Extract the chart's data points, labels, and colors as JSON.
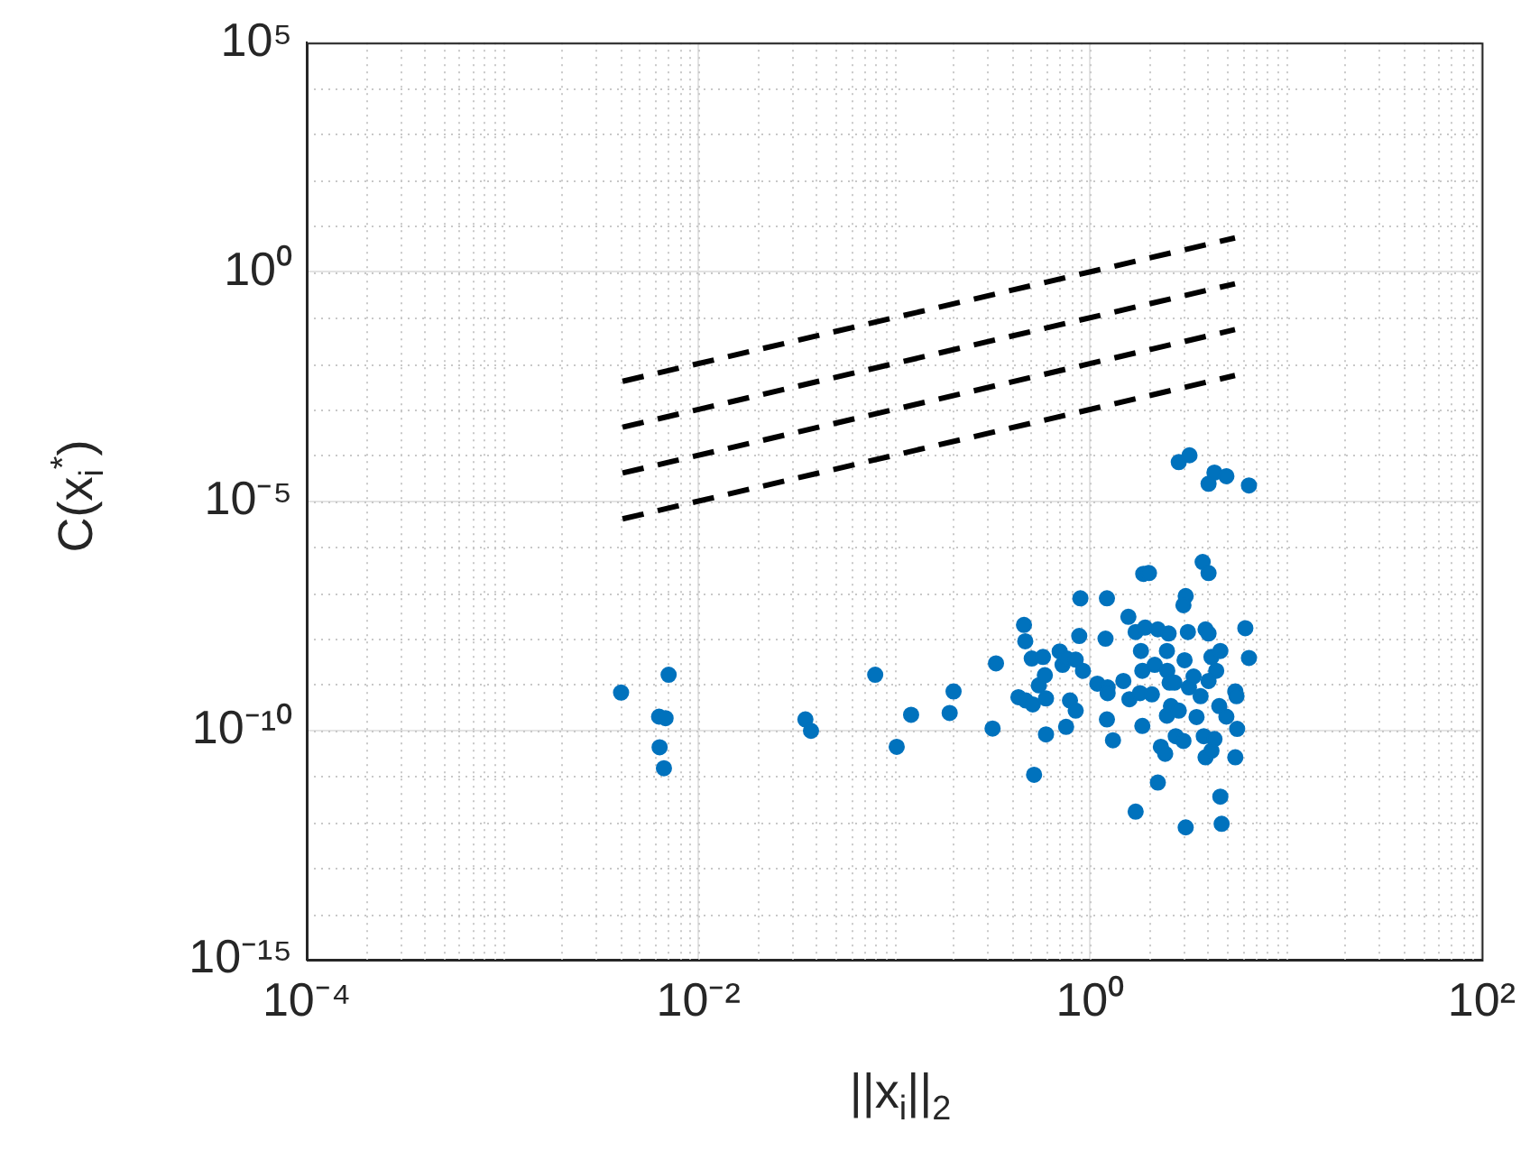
{
  "chart_data": {
    "type": "scatter",
    "xlabel": "||x$_{i}$||$_{2}$",
    "ylabel": "C(x$_{i}$$^{*}$)",
    "log": "xy",
    "grid": true,
    "xlim": [
      0.0001,
      100
    ],
    "ylim": [
      1e-15,
      100000
    ],
    "xticks": [
      {
        "value": 0.0001,
        "label": "10⁻⁴"
      },
      {
        "value": 0.01,
        "label": "10⁻²"
      },
      {
        "value": 1,
        "label": "10⁰"
      },
      {
        "value": 100,
        "label": "10²"
      }
    ],
    "yticks": [
      {
        "value": 1e-15,
        "label": "10⁻¹⁵"
      },
      {
        "value": 1e-10,
        "label": "10⁻¹⁰"
      },
      {
        "value": 1e-05,
        "label": "10⁻⁵"
      },
      {
        "value": 1,
        "label": "10⁰"
      },
      {
        "value": 100000,
        "label": "10⁵"
      }
    ],
    "series": [
      {
        "type": "line",
        "line_style": "dashed",
        "color": "#000000",
        "x": [
          0.0041,
          5.5
        ],
        "values": [
          0.0041,
          5.5
        ]
      },
      {
        "type": "line",
        "line_style": "dashed",
        "color": "#000000",
        "x": [
          0.0041,
          5.5
        ],
        "values": [
          0.00041,
          0.55
        ]
      },
      {
        "type": "line",
        "line_style": "dashed",
        "color": "#000000",
        "x": [
          0.0041,
          5.5
        ],
        "values": [
          4.1e-05,
          0.055
        ]
      },
      {
        "type": "line",
        "line_style": "dashed",
        "color": "#000000",
        "x": [
          0.0041,
          5.5
        ],
        "values": [
          4.1e-06,
          0.0055
        ]
      },
      {
        "type": "scatter",
        "color": "#0072bd",
        "marker": "circle",
        "x": [
          2.84,
          3.22,
          4.03,
          4.32,
          4.97,
          6.48,
          0.00403,
          0.00705,
          0.0063,
          0.0068,
          0.00634,
          0.00667,
          0.0352,
          0.0376,
          0.08,
          0.103,
          0.122,
          0.192,
          0.201,
          0.318,
          0.331,
          0.46,
          0.467,
          0.431,
          0.47,
          0.51,
          0.518,
          0.504,
          0.575,
          0.548,
          0.588,
          0.596,
          0.596,
          0.7,
          0.724,
          0.76,
          0.845,
          0.79,
          0.845,
          0.755,
          0.893,
          0.881,
          0.92,
          1.09,
          1.22,
          1.2,
          1.23,
          1.23,
          1.22,
          1.31,
          1.48,
          1.57,
          1.59,
          1.71,
          1.71,
          1.87,
          2.0,
          1.91,
          1.82,
          1.85,
          1.85,
          1.8,
          2.07,
          2.22,
          2.14,
          2.22,
          2.3,
          2.42,
          2.47,
          2.52,
          2.48,
          2.55,
          2.59,
          2.47,
          2.7,
          2.84,
          2.74,
          3.0,
          3.08,
          3.16,
          3.04,
          3.08,
          3.0,
          3.2,
          3.38,
          3.5,
          3.67,
          3.76,
          4.03,
          3.89,
          4.03,
          4.17,
          4.41,
          4.63,
          4.03,
          3.81,
          3.89,
          4.17,
          4.32,
          4.57,
          4.97,
          4.63,
          4.7,
          5.52,
          5.6,
          5.64,
          5.52,
          6.21,
          6.48
        ],
        "values": [
          7.1e-05,
          0.0001,
          2.4e-05,
          4.2e-05,
          3.5e-05,
          2.2e-05,
          6.7e-10,
          1.64e-09,
          2e-10,
          1.85e-10,
          4.3e-11,
          1.5e-11,
          1.74e-10,
          9.8e-11,
          1.64e-09,
          4.4e-11,
          2.2e-10,
          2.4e-10,
          7.1e-10,
          1.1e-10,
          2.9e-09,
          2e-08,
          8.8e-09,
          5.3e-10,
          4.5e-10,
          3.7e-10,
          1.08e-11,
          3.7e-09,
          4e-09,
          9.6e-10,
          1.6e-09,
          5e-10,
          8.2e-11,
          5.3e-09,
          2.7e-09,
          3.7e-09,
          3.5e-09,
          4.5e-10,
          2.7e-10,
          1.2e-10,
          7.6e-08,
          1.15e-08,
          2e-09,
          1.05e-09,
          7.6e-08,
          1e-08,
          8.7e-10,
          6.5e-10,
          1.74e-10,
          6.1e-11,
          1.2e-09,
          3e-08,
          4.8e-10,
          1.4e-08,
          1.7e-12,
          2.6e-07,
          2.7e-07,
          1.75e-08,
          5.4e-09,
          2e-09,
          1.25e-10,
          6.5e-10,
          6.1e-10,
          1.6e-08,
          2.7e-09,
          7.3e-12,
          4.4e-11,
          3.1e-11,
          5.4e-09,
          1.3e-08,
          2e-09,
          1.1e-09,
          3.4e-10,
          2.1e-10,
          1.1e-09,
          2.7e-10,
          7.5e-11,
          5.9e-11,
          7.7e-13,
          1.4e-08,
          3.4e-09,
          8.5e-08,
          5.4e-08,
          8.7e-10,
          1.5e-09,
          1.96e-10,
          5.6e-10,
          4.7e-07,
          2.7e-07,
          1.6e-08,
          1.3e-08,
          4e-09,
          2e-09,
          5.4e-09,
          1.2e-09,
          7.5e-11,
          2.6e-11,
          3.6e-11,
          6.5e-11,
          3.4e-10,
          2e-10,
          3.6e-12,
          9.2e-13,
          7.1e-10,
          5.6e-10,
          1.08e-10,
          2.6e-11,
          1.7e-08,
          3.8e-09
        ]
      }
    ]
  }
}
